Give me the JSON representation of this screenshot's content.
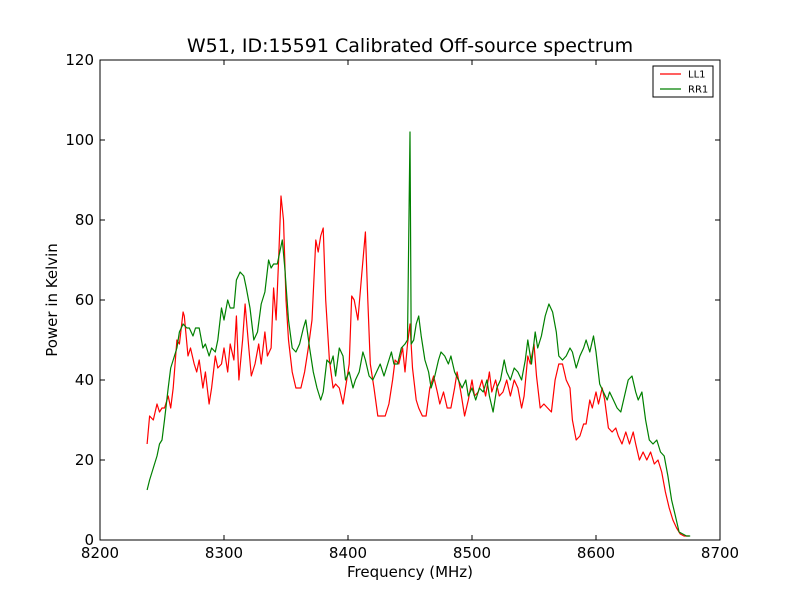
{
  "chart_data": {
    "type": "line",
    "title": "W51, ID:15591 Calibrated Off-source spectrum",
    "xlabel": "Frequency (MHz)",
    "ylabel": "Power in Kelvin",
    "xlim": [
      8200,
      8700
    ],
    "ylim": [
      0,
      120
    ],
    "xticks": [
      "8200",
      "8300",
      "8400",
      "8500",
      "8600",
      "8700"
    ],
    "yticks": [
      "0",
      "20",
      "40",
      "60",
      "80",
      "100",
      "120"
    ],
    "grid": false,
    "legend_position": "top-right",
    "series": [
      {
        "name": "LL1",
        "color": "#ff0000",
        "points": [
          [
            8238,
            24
          ],
          [
            8240,
            31
          ],
          [
            8243,
            30
          ],
          [
            8246,
            34
          ],
          [
            8248,
            32
          ],
          [
            8250,
            33
          ],
          [
            8252,
            33
          ],
          [
            8255,
            36
          ],
          [
            8257,
            33
          ],
          [
            8259,
            38
          ],
          [
            8262,
            50
          ],
          [
            8264,
            49
          ],
          [
            8267,
            57
          ],
          [
            8268,
            56
          ],
          [
            8271,
            46
          ],
          [
            8273,
            48
          ],
          [
            8276,
            44
          ],
          [
            8278,
            42
          ],
          [
            8280,
            45
          ],
          [
            8283,
            38
          ],
          [
            8285,
            42
          ],
          [
            8288,
            34
          ],
          [
            8290,
            38
          ],
          [
            8293,
            46
          ],
          [
            8295,
            43
          ],
          [
            8298,
            44
          ],
          [
            8300,
            48
          ],
          [
            8303,
            42
          ],
          [
            8305,
            49
          ],
          [
            8308,
            45
          ],
          [
            8310,
            56
          ],
          [
            8312,
            40
          ],
          [
            8315,
            50
          ],
          [
            8317,
            59
          ],
          [
            8320,
            48
          ],
          [
            8322,
            41
          ],
          [
            8325,
            44
          ],
          [
            8328,
            49
          ],
          [
            8330,
            44
          ],
          [
            8333,
            52
          ],
          [
            8335,
            46
          ],
          [
            8338,
            48
          ],
          [
            8340,
            63
          ],
          [
            8342,
            55
          ],
          [
            8344,
            70
          ],
          [
            8346,
            86
          ],
          [
            8348,
            80
          ],
          [
            8350,
            60
          ],
          [
            8352,
            50
          ],
          [
            8355,
            42
          ],
          [
            8358,
            38
          ],
          [
            8362,
            38
          ],
          [
            8365,
            42
          ],
          [
            8368,
            48
          ],
          [
            8371,
            55
          ],
          [
            8374,
            75
          ],
          [
            8376,
            72
          ],
          [
            8378,
            76
          ],
          [
            8380,
            78
          ],
          [
            8382,
            60
          ],
          [
            8385,
            45
          ],
          [
            8388,
            38
          ],
          [
            8390,
            39
          ],
          [
            8393,
            38
          ],
          [
            8396,
            34
          ],
          [
            8398,
            38
          ],
          [
            8401,
            44
          ],
          [
            8403,
            61
          ],
          [
            8405,
            60
          ],
          [
            8408,
            55
          ],
          [
            8411,
            66
          ],
          [
            8414,
            77
          ],
          [
            8416,
            60
          ],
          [
            8418,
            44
          ],
          [
            8421,
            38
          ],
          [
            8424,
            31
          ],
          [
            8427,
            31
          ],
          [
            8430,
            31
          ],
          [
            8433,
            34
          ],
          [
            8436,
            40
          ],
          [
            8438,
            45
          ],
          [
            8441,
            44
          ],
          [
            8444,
            48
          ],
          [
            8446,
            42
          ],
          [
            8448,
            49
          ],
          [
            8450,
            54
          ],
          [
            8452,
            43
          ],
          [
            8455,
            35
          ],
          [
            8457,
            33
          ],
          [
            8460,
            31
          ],
          [
            8463,
            31
          ],
          [
            8466,
            38
          ],
          [
            8469,
            41
          ],
          [
            8472,
            37
          ],
          [
            8474,
            34
          ],
          [
            8477,
            37
          ],
          [
            8480,
            33
          ],
          [
            8483,
            33
          ],
          [
            8486,
            38
          ],
          [
            8488,
            42
          ],
          [
            8491,
            37
          ],
          [
            8494,
            31
          ],
          [
            8497,
            35
          ],
          [
            8500,
            40
          ],
          [
            8502,
            36
          ],
          [
            8505,
            37
          ],
          [
            8508,
            40
          ],
          [
            8511,
            36
          ],
          [
            8514,
            42
          ],
          [
            8516,
            37
          ],
          [
            8519,
            40
          ],
          [
            8522,
            36
          ],
          [
            8525,
            37
          ],
          [
            8528,
            40
          ],
          [
            8531,
            36
          ],
          [
            8534,
            40
          ],
          [
            8537,
            38
          ],
          [
            8540,
            33
          ],
          [
            8542,
            36
          ],
          [
            8545,
            46
          ],
          [
            8547,
            44
          ],
          [
            8550,
            49
          ],
          [
            8552,
            41
          ],
          [
            8555,
            33
          ],
          [
            8558,
            34
          ],
          [
            8561,
            33
          ],
          [
            8564,
            32
          ],
          [
            8567,
            40
          ],
          [
            8570,
            44
          ],
          [
            8573,
            44
          ],
          [
            8576,
            40
          ],
          [
            8579,
            38
          ],
          [
            8581,
            30
          ],
          [
            8584,
            25
          ],
          [
            8587,
            26
          ],
          [
            8590,
            29
          ],
          [
            8592,
            29
          ],
          [
            8595,
            35
          ],
          [
            8597,
            33
          ],
          [
            8600,
            37
          ],
          [
            8602,
            34
          ],
          [
            8605,
            38
          ],
          [
            8607,
            35
          ],
          [
            8610,
            28
          ],
          [
            8613,
            27
          ],
          [
            8616,
            28
          ],
          [
            8618,
            26
          ],
          [
            8621,
            24
          ],
          [
            8624,
            27
          ],
          [
            8627,
            24
          ],
          [
            8630,
            27
          ],
          [
            8632,
            24
          ],
          [
            8635,
            20
          ],
          [
            8638,
            22
          ],
          [
            8641,
            20
          ],
          [
            8644,
            22
          ],
          [
            8647,
            19
          ],
          [
            8650,
            20
          ],
          [
            8653,
            17
          ],
          [
            8656,
            12
          ],
          [
            8659,
            8
          ],
          [
            8662,
            5
          ],
          [
            8665,
            3
          ],
          [
            8668,
            1.5
          ],
          [
            8671,
            1
          ],
          [
            8675,
            1
          ]
        ]
      },
      {
        "name": "RR1",
        "color": "#008000",
        "points": [
          [
            8238,
            12.5
          ],
          [
            8240,
            15
          ],
          [
            8243,
            18
          ],
          [
            8246,
            21
          ],
          [
            8248,
            24
          ],
          [
            8250,
            25
          ],
          [
            8252,
            30
          ],
          [
            8255,
            38
          ],
          [
            8257,
            43
          ],
          [
            8259,
            45
          ],
          [
            8262,
            48
          ],
          [
            8264,
            52
          ],
          [
            8267,
            54
          ],
          [
            8270,
            53
          ],
          [
            8272,
            53
          ],
          [
            8275,
            51
          ],
          [
            8277,
            53
          ],
          [
            8280,
            53
          ],
          [
            8283,
            48
          ],
          [
            8285,
            49
          ],
          [
            8288,
            46
          ],
          [
            8290,
            48
          ],
          [
            8293,
            47
          ],
          [
            8295,
            50
          ],
          [
            8298,
            58
          ],
          [
            8300,
            55
          ],
          [
            8303,
            60
          ],
          [
            8305,
            58
          ],
          [
            8308,
            58
          ],
          [
            8310,
            65
          ],
          [
            8313,
            67
          ],
          [
            8316,
            66
          ],
          [
            8318,
            63
          ],
          [
            8321,
            58
          ],
          [
            8324,
            50
          ],
          [
            8327,
            52
          ],
          [
            8330,
            59
          ],
          [
            8333,
            62
          ],
          [
            8336,
            70
          ],
          [
            8338,
            68
          ],
          [
            8340,
            69
          ],
          [
            8343,
            69
          ],
          [
            8345,
            72
          ],
          [
            8347,
            75
          ],
          [
            8349,
            68
          ],
          [
            8352,
            55
          ],
          [
            8355,
            48
          ],
          [
            8358,
            47
          ],
          [
            8361,
            49
          ],
          [
            8364,
            53
          ],
          [
            8366,
            55
          ],
          [
            8369,
            48
          ],
          [
            8372,
            42
          ],
          [
            8375,
            38
          ],
          [
            8378,
            35
          ],
          [
            8380,
            37
          ],
          [
            8383,
            45
          ],
          [
            8386,
            44
          ],
          [
            8388,
            46
          ],
          [
            8390,
            41
          ],
          [
            8393,
            48
          ],
          [
            8396,
            46
          ],
          [
            8398,
            40
          ],
          [
            8401,
            42
          ],
          [
            8404,
            38
          ],
          [
            8406,
            40
          ],
          [
            8409,
            42
          ],
          [
            8412,
            47
          ],
          [
            8414,
            45
          ],
          [
            8417,
            41
          ],
          [
            8420,
            40
          ],
          [
            8423,
            42
          ],
          [
            8426,
            44
          ],
          [
            8429,
            41
          ],
          [
            8432,
            44
          ],
          [
            8435,
            47
          ],
          [
            8437,
            44
          ],
          [
            8440,
            44
          ],
          [
            8443,
            48
          ],
          [
            8446,
            49
          ],
          [
            8448,
            50
          ],
          [
            8450,
            102
          ],
          [
            8451,
            49
          ],
          [
            8453,
            50
          ],
          [
            8455,
            54
          ],
          [
            8457,
            56
          ],
          [
            8459,
            51
          ],
          [
            8462,
            45
          ],
          [
            8465,
            42
          ],
          [
            8467,
            38
          ],
          [
            8470,
            41
          ],
          [
            8473,
            45
          ],
          [
            8475,
            47
          ],
          [
            8478,
            46
          ],
          [
            8481,
            44
          ],
          [
            8483,
            46
          ],
          [
            8486,
            42
          ],
          [
            8489,
            40
          ],
          [
            8492,
            38
          ],
          [
            8495,
            40
          ],
          [
            8497,
            36
          ],
          [
            8500,
            38
          ],
          [
            8503,
            35
          ],
          [
            8506,
            38
          ],
          [
            8509,
            37
          ],
          [
            8512,
            40
          ],
          [
            8514,
            36
          ],
          [
            8517,
            32
          ],
          [
            8520,
            38
          ],
          [
            8523,
            40
          ],
          [
            8526,
            45
          ],
          [
            8528,
            42
          ],
          [
            8531,
            40
          ],
          [
            8534,
            43
          ],
          [
            8537,
            42
          ],
          [
            8540,
            40
          ],
          [
            8543,
            45
          ],
          [
            8545,
            50
          ],
          [
            8548,
            44
          ],
          [
            8551,
            52
          ],
          [
            8553,
            48
          ],
          [
            8556,
            51
          ],
          [
            8559,
            56
          ],
          [
            8562,
            59
          ],
          [
            8565,
            57
          ],
          [
            8568,
            52
          ],
          [
            8570,
            46
          ],
          [
            8573,
            45
          ],
          [
            8576,
            46
          ],
          [
            8579,
            48
          ],
          [
            8581,
            47
          ],
          [
            8584,
            43
          ],
          [
            8587,
            46
          ],
          [
            8590,
            48
          ],
          [
            8592,
            50
          ],
          [
            8595,
            47
          ],
          [
            8598,
            51
          ],
          [
            8600,
            47
          ],
          [
            8603,
            39
          ],
          [
            8606,
            37
          ],
          [
            8609,
            35
          ],
          [
            8611,
            37
          ],
          [
            8614,
            35
          ],
          [
            8617,
            33
          ],
          [
            8620,
            32
          ],
          [
            8623,
            36
          ],
          [
            8626,
            40
          ],
          [
            8629,
            41
          ],
          [
            8632,
            37
          ],
          [
            8634,
            35
          ],
          [
            8637,
            37
          ],
          [
            8640,
            30
          ],
          [
            8643,
            25
          ],
          [
            8646,
            24
          ],
          [
            8649,
            25
          ],
          [
            8652,
            22
          ],
          [
            8655,
            21
          ],
          [
            8658,
            16
          ],
          [
            8661,
            10
          ],
          [
            8664,
            6
          ],
          [
            8667,
            2
          ],
          [
            8670,
            1.5
          ],
          [
            8673,
            1
          ],
          [
            8676,
            1
          ]
        ]
      }
    ]
  }
}
